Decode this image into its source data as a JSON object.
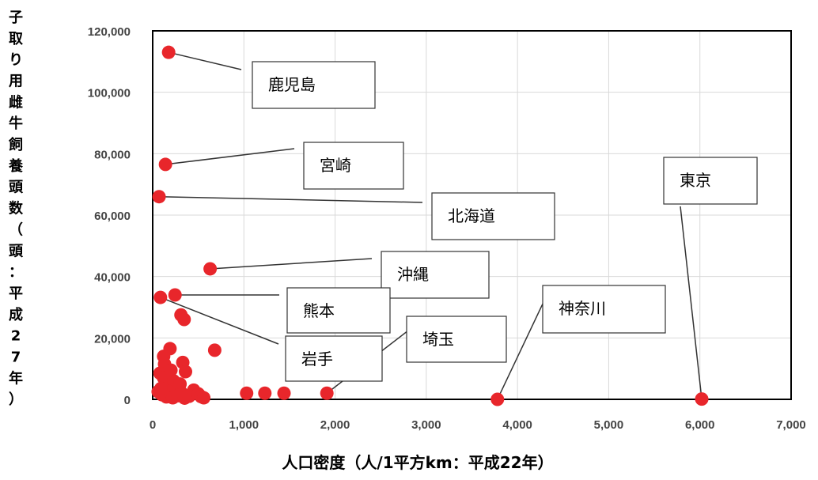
{
  "chart_data": {
    "type": "scatter",
    "title": "",
    "xlabel": "人口密度（人/1平方km：平成22年）",
    "ylabel": "子取り用雌牛飼養頭数（頭：平成27年）",
    "xlim": [
      0,
      7000
    ],
    "ylim": [
      0,
      120000
    ],
    "xticks": [
      0,
      1000,
      2000,
      3000,
      4000,
      5000,
      6000,
      7000
    ],
    "xtick_labels": [
      "0",
      "1,000",
      "2,000",
      "3,000",
      "4,000",
      "5,000",
      "6,000",
      "7,000"
    ],
    "yticks": [
      0,
      20000,
      40000,
      60000,
      80000,
      100000,
      120000
    ],
    "ytick_labels": [
      "0",
      "20,000",
      "40,000",
      "60,000",
      "80,000",
      "100,000",
      "120,000"
    ],
    "grid": true,
    "marker_color": "#e8262b",
    "points": [
      {
        "x": 175,
        "y": 113000,
        "label": "鹿児島"
      },
      {
        "x": 140,
        "y": 76500,
        "label": "宮崎"
      },
      {
        "x": 70,
        "y": 66000,
        "label": "北海道"
      },
      {
        "x": 630,
        "y": 42500,
        "label": "沖縄"
      },
      {
        "x": 245,
        "y": 34000,
        "label": "熊本"
      },
      {
        "x": 85,
        "y": 33200,
        "label": "岩手"
      },
      {
        "x": 1910,
        "y": 2000,
        "label": "埼玉"
      },
      {
        "x": 3780,
        "y": 0,
        "label": "神奈川"
      },
      {
        "x": 6020,
        "y": 100,
        "label": "東京"
      },
      {
        "x": 310,
        "y": 27500
      },
      {
        "x": 345,
        "y": 26000
      },
      {
        "x": 680,
        "y": 16000
      },
      {
        "x": 190,
        "y": 16500
      },
      {
        "x": 120,
        "y": 14000
      },
      {
        "x": 130,
        "y": 11500
      },
      {
        "x": 330,
        "y": 12000
      },
      {
        "x": 360,
        "y": 9000
      },
      {
        "x": 80,
        "y": 8500
      },
      {
        "x": 120,
        "y": 7000
      },
      {
        "x": 160,
        "y": 5500
      },
      {
        "x": 200,
        "y": 4500
      },
      {
        "x": 230,
        "y": 6000
      },
      {
        "x": 260,
        "y": 3500
      },
      {
        "x": 300,
        "y": 5000
      },
      {
        "x": 320,
        "y": 2000
      },
      {
        "x": 60,
        "y": 2500
      },
      {
        "x": 100,
        "y": 1500
      },
      {
        "x": 150,
        "y": 800
      },
      {
        "x": 180,
        "y": 2500
      },
      {
        "x": 220,
        "y": 500
      },
      {
        "x": 280,
        "y": 1200
      },
      {
        "x": 350,
        "y": 400
      },
      {
        "x": 400,
        "y": 1000
      },
      {
        "x": 450,
        "y": 3000
      },
      {
        "x": 500,
        "y": 1800
      },
      {
        "x": 530,
        "y": 900
      },
      {
        "x": 560,
        "y": 500
      },
      {
        "x": 1030,
        "y": 2000
      },
      {
        "x": 1230,
        "y": 2000
      },
      {
        "x": 1440,
        "y": 2000
      },
      {
        "x": 90,
        "y": 3500
      },
      {
        "x": 200,
        "y": 9500
      }
    ]
  }
}
